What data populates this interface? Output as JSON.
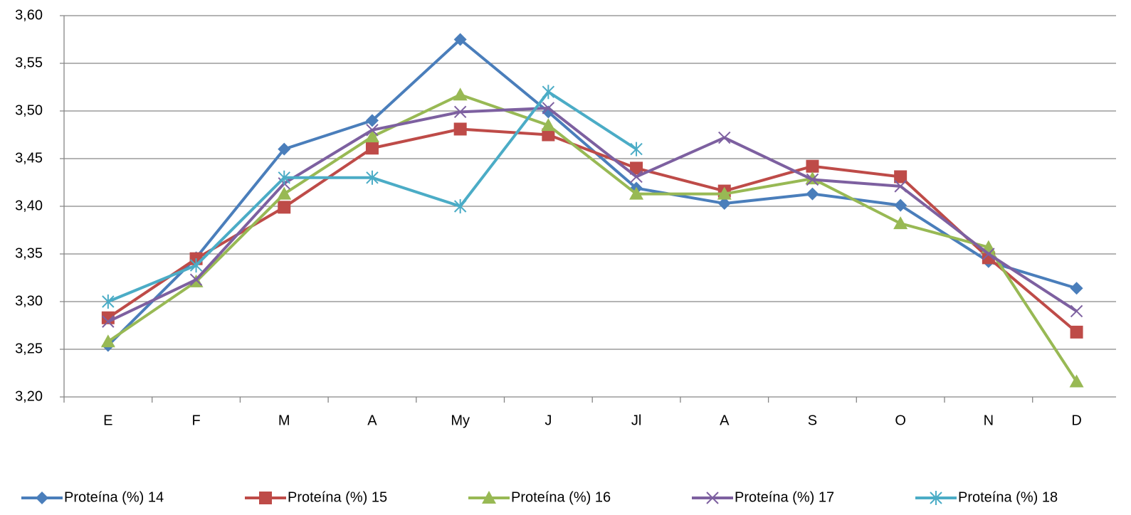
{
  "chart_data": {
    "type": "line",
    "categories": [
      "E",
      "F",
      "M",
      "A",
      "My",
      "J",
      "Jl",
      "A",
      "S",
      "O",
      "N",
      "D"
    ],
    "series": [
      {
        "name": "Proteína (%) 14",
        "color": "#4a7ebb",
        "marker": "diamond",
        "values": [
          3.254,
          3.346,
          3.46,
          3.49,
          3.575,
          3.499,
          3.419,
          3.403,
          3.413,
          3.401,
          3.342,
          3.314
        ]
      },
      {
        "name": "Proteína (%) 15",
        "color": "#be4b48",
        "marker": "square",
        "values": [
          3.283,
          3.345,
          3.399,
          3.461,
          3.481,
          3.475,
          3.44,
          3.416,
          3.442,
          3.431,
          3.346,
          3.268
        ]
      },
      {
        "name": "Proteína (%) 16",
        "color": "#98b954",
        "marker": "triangle",
        "values": [
          3.258,
          3.321,
          3.413,
          3.473,
          3.517,
          3.485,
          3.413,
          3.413,
          3.429,
          3.382,
          3.357,
          3.216
        ]
      },
      {
        "name": "Proteína (%) 17",
        "color": "#7d60a0",
        "marker": "x",
        "values": [
          3.279,
          3.323,
          3.424,
          3.48,
          3.499,
          3.503,
          3.431,
          3.472,
          3.428,
          3.421,
          3.35,
          3.29
        ]
      },
      {
        "name": "Proteína (%)  18",
        "color": "#4bacc6",
        "marker": "star",
        "values": [
          3.3,
          3.338,
          3.43,
          3.43,
          3.4,
          3.52,
          3.46,
          null,
          null,
          null,
          null,
          null
        ]
      }
    ],
    "ylim": [
      3.2,
      3.6
    ],
    "yticks": [
      {
        "value": 3.2,
        "label": "3,20"
      },
      {
        "value": 3.25,
        "label": "3,25"
      },
      {
        "value": 3.3,
        "label": "3,30"
      },
      {
        "value": 3.35,
        "label": "3,35"
      },
      {
        "value": 3.4,
        "label": "3,40"
      },
      {
        "value": 3.45,
        "label": "3,45"
      },
      {
        "value": 3.5,
        "label": "3,50"
      },
      {
        "value": 3.55,
        "label": "3,55"
      },
      {
        "value": 3.6,
        "label": "3,60"
      }
    ],
    "grid": true,
    "legend": "bottom"
  }
}
